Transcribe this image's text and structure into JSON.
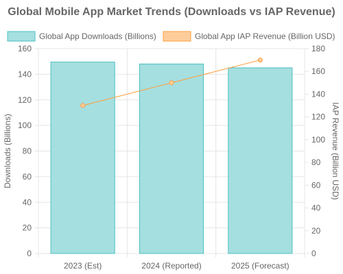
{
  "chart_data": {
    "type": "bar",
    "title": "Global Mobile App Market Trends (Downloads vs IAP Revenue)",
    "categories": [
      "2023 (Est)",
      "2024 (Reported)",
      "2025 (Forecast)"
    ],
    "series": [
      {
        "name": "Global App Downloads (Billions)",
        "type": "bar",
        "axis": "left",
        "values": [
          149.5,
          148,
          145
        ],
        "color": "#a5dfdf",
        "border_color": "#4bc0c0"
      },
      {
        "name": "Global App IAP Revenue (Billion USD)",
        "type": "line",
        "axis": "right",
        "values": [
          130,
          150,
          170
        ],
        "color": "#ffcd9b",
        "border_color": "#ff9f40"
      }
    ],
    "y_left": {
      "label": "Downloads (Billions)",
      "min": 0,
      "max": 160,
      "ticks": [
        "0",
        "20",
        "40",
        "60",
        "80",
        "100",
        "120",
        "140",
        "160"
      ]
    },
    "y_right": {
      "label": "IAP Revenue (Billion USD)",
      "min": 0,
      "max": 180,
      "ticks": [
        "0",
        "20",
        "40",
        "60",
        "80",
        "100",
        "120",
        "140",
        "160",
        "180"
      ]
    },
    "grid": true,
    "legend_position": "top"
  }
}
